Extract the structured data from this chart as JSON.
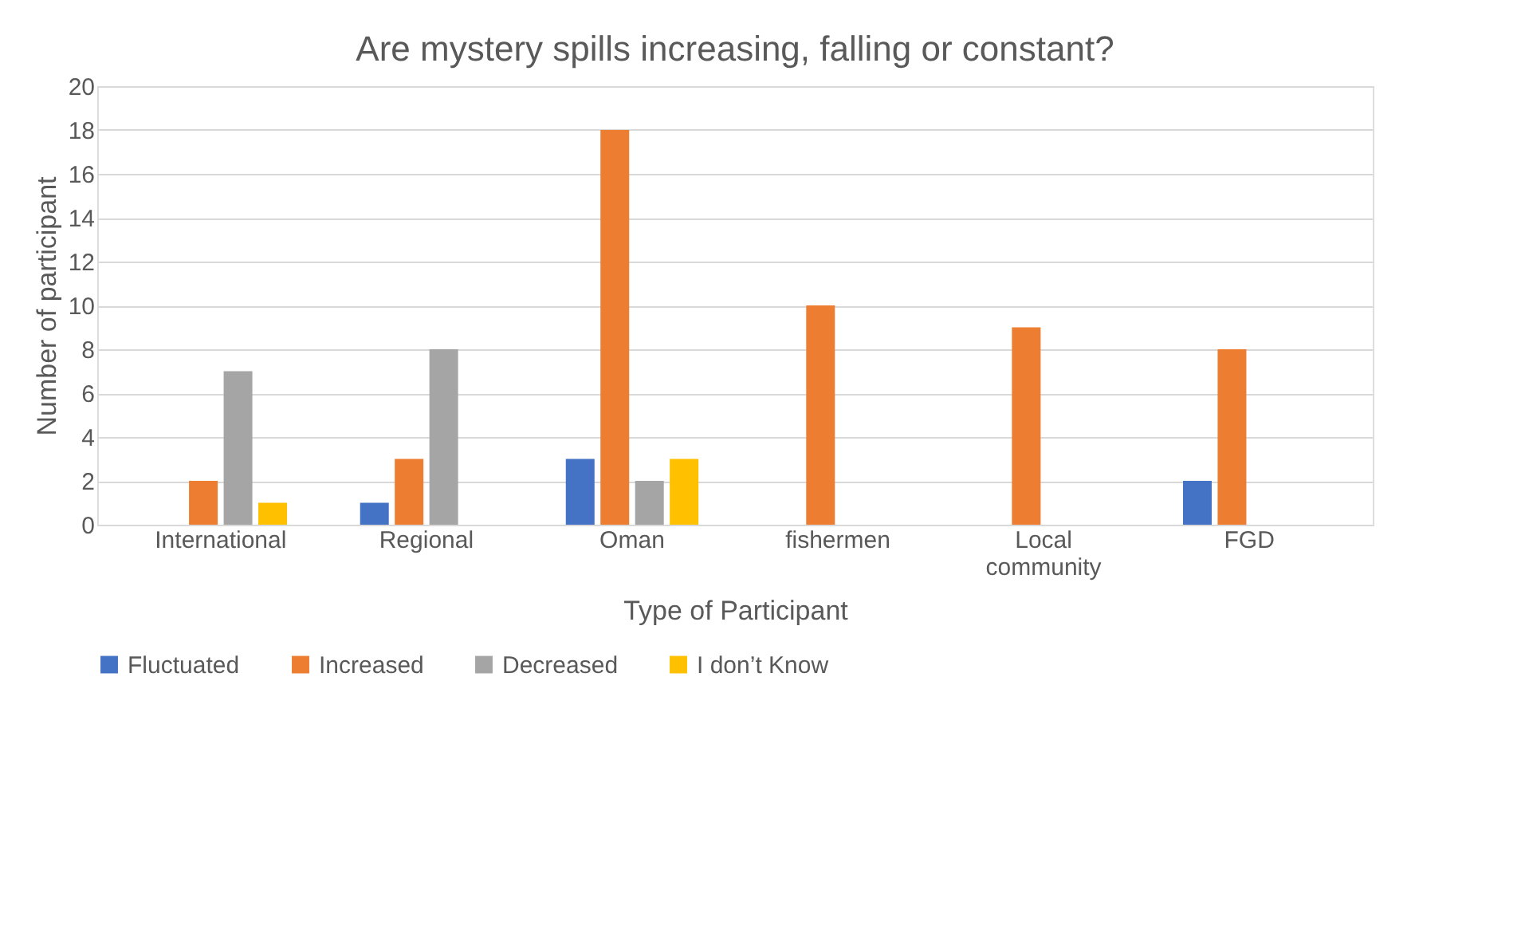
{
  "chart_data": {
    "type": "bar",
    "title": "Are mystery spills increasing, falling or constant?",
    "xlabel": "Type of Participant",
    "ylabel": "Number of participant",
    "categories": [
      "International",
      "Regional",
      "Oman",
      "fishermen",
      "Local community",
      "FGD"
    ],
    "series": [
      {
        "name": "Fluctuated",
        "color": "#4472c4",
        "values": [
          0,
          1,
          3,
          0,
          0,
          2
        ]
      },
      {
        "name": "Increased",
        "color": "#ed7d31",
        "values": [
          2,
          3,
          18,
          10,
          9,
          8
        ]
      },
      {
        "name": "Decreased",
        "color": "#a5a5a5",
        "values": [
          7,
          8,
          2,
          0,
          0,
          0
        ]
      },
      {
        "name": "I don’t Know",
        "color": "#ffc000",
        "values": [
          1,
          0,
          3,
          0,
          0,
          0
        ]
      }
    ],
    "ylim": [
      0,
      20
    ],
    "yticks": [
      0,
      2,
      4,
      6,
      8,
      10,
      12,
      14,
      16,
      18,
      20
    ],
    "grid": "y",
    "legend": "bottom"
  }
}
